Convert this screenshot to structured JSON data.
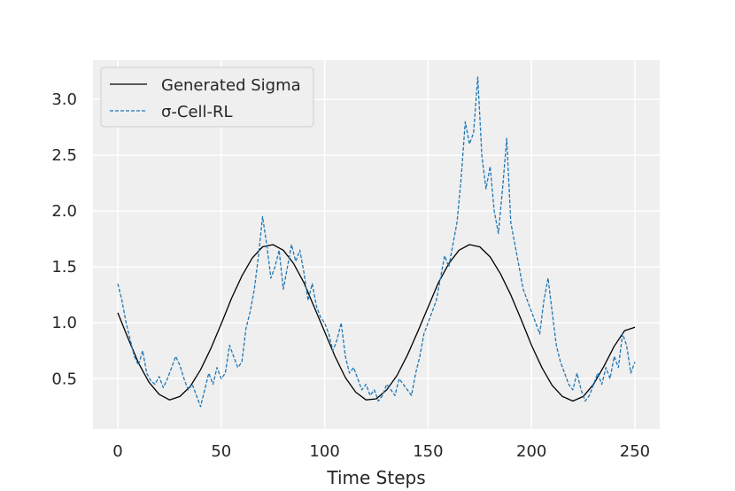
{
  "chart_data": {
    "type": "line",
    "title": "",
    "xlabel": "Time Steps",
    "ylabel": "",
    "xlim": [
      -12,
      262
    ],
    "ylim": [
      0.05,
      3.35
    ],
    "x_ticks": [
      0,
      50,
      100,
      150,
      200,
      250
    ],
    "y_ticks": [
      0.5,
      1.0,
      1.5,
      2.0,
      2.5,
      3.0
    ],
    "x_tick_labels": [
      "0",
      "50",
      "100",
      "150",
      "200",
      "250"
    ],
    "y_tick_labels": [
      "0.5",
      "1.0",
      "1.5",
      "2.0",
      "2.5",
      "3.0"
    ],
    "grid": true,
    "legend_position": "upper-left",
    "series": [
      {
        "name": "Generated Sigma",
        "style": "solid",
        "color": "#000000",
        "x": [
          0,
          5,
          10,
          15,
          20,
          25,
          30,
          35,
          40,
          45,
          50,
          55,
          60,
          65,
          70,
          75,
          80,
          85,
          90,
          95,
          100,
          105,
          110,
          115,
          120,
          125,
          130,
          135,
          140,
          145,
          150,
          155,
          160,
          165,
          170,
          175,
          180,
          185,
          190,
          195,
          200,
          205,
          210,
          215,
          220,
          225,
          230,
          235,
          240,
          245,
          250
        ],
        "y": [
          1.09,
          0.86,
          0.64,
          0.47,
          0.36,
          0.31,
          0.34,
          0.43,
          0.58,
          0.77,
          0.99,
          1.22,
          1.42,
          1.58,
          1.68,
          1.7,
          1.65,
          1.53,
          1.36,
          1.14,
          0.92,
          0.7,
          0.51,
          0.38,
          0.31,
          0.32,
          0.4,
          0.53,
          0.71,
          0.92,
          1.14,
          1.36,
          1.53,
          1.65,
          1.7,
          1.68,
          1.59,
          1.44,
          1.25,
          1.03,
          0.8,
          0.6,
          0.44,
          0.34,
          0.3,
          0.34,
          0.45,
          0.61,
          0.79,
          0.93,
          0.96
        ]
      },
      {
        "name": "σ-Cell-RL",
        "style": "dashed",
        "color": "#1f77b4",
        "x": [
          0,
          2,
          4,
          6,
          8,
          10,
          12,
          14,
          16,
          18,
          20,
          22,
          24,
          26,
          28,
          30,
          32,
          34,
          36,
          38,
          40,
          42,
          44,
          46,
          48,
          50,
          52,
          54,
          56,
          58,
          60,
          62,
          64,
          66,
          68,
          70,
          72,
          74,
          76,
          78,
          80,
          82,
          84,
          86,
          88,
          90,
          92,
          94,
          96,
          98,
          100,
          102,
          104,
          106,
          108,
          110,
          112,
          114,
          116,
          118,
          120,
          122,
          124,
          126,
          128,
          130,
          132,
          134,
          136,
          138,
          140,
          142,
          144,
          146,
          148,
          150,
          152,
          154,
          156,
          158,
          160,
          162,
          164,
          166,
          168,
          170,
          172,
          174,
          176,
          178,
          180,
          182,
          184,
          186,
          188,
          190,
          192,
          194,
          196,
          198,
          200,
          202,
          204,
          206,
          208,
          210,
          212,
          214,
          216,
          218,
          220,
          222,
          224,
          226,
          228,
          230,
          232,
          234,
          236,
          238,
          240,
          242,
          244,
          246,
          248,
          250
        ],
        "y": [
          1.35,
          1.2,
          1.0,
          0.85,
          0.7,
          0.62,
          0.75,
          0.55,
          0.48,
          0.45,
          0.52,
          0.42,
          0.5,
          0.6,
          0.7,
          0.62,
          0.5,
          0.4,
          0.45,
          0.35,
          0.25,
          0.4,
          0.55,
          0.45,
          0.6,
          0.5,
          0.55,
          0.8,
          0.7,
          0.6,
          0.65,
          0.95,
          1.1,
          1.3,
          1.6,
          1.95,
          1.7,
          1.4,
          1.5,
          1.65,
          1.3,
          1.5,
          1.7,
          1.55,
          1.65,
          1.45,
          1.2,
          1.35,
          1.15,
          1.05,
          1.0,
          0.9,
          0.75,
          0.85,
          1.0,
          0.7,
          0.55,
          0.6,
          0.5,
          0.4,
          0.45,
          0.35,
          0.4,
          0.3,
          0.35,
          0.45,
          0.4,
          0.35,
          0.5,
          0.45,
          0.4,
          0.35,
          0.55,
          0.7,
          0.9,
          1.0,
          1.1,
          1.2,
          1.4,
          1.6,
          1.5,
          1.7,
          1.9,
          2.3,
          2.8,
          2.6,
          2.7,
          3.2,
          2.5,
          2.2,
          2.4,
          2.0,
          1.8,
          2.2,
          2.65,
          1.9,
          1.7,
          1.5,
          1.3,
          1.2,
          1.1,
          1.0,
          0.9,
          1.2,
          1.4,
          1.1,
          0.8,
          0.65,
          0.55,
          0.45,
          0.4,
          0.55,
          0.4,
          0.3,
          0.35,
          0.45,
          0.55,
          0.45,
          0.6,
          0.5,
          0.7,
          0.6,
          0.9,
          0.8,
          0.55,
          0.65
        ]
      }
    ]
  },
  "colors": {
    "plot_background": "#efefef",
    "grid": "#ffffff",
    "text": "#262626",
    "legend_border": "#cccccc"
  }
}
